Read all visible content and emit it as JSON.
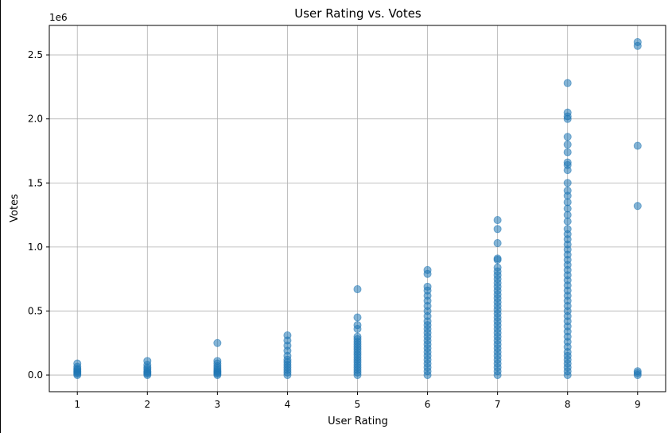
{
  "chart_data": {
    "type": "scatter",
    "title": "User Rating vs. Votes",
    "xlabel": "User Rating",
    "ylabel": "Votes",
    "y_offset_label": "1e6",
    "xlim": [
      0.6,
      9.4
    ],
    "ylim": [
      -130000,
      2730000
    ],
    "xticks": [
      1,
      2,
      3,
      4,
      5,
      6,
      7,
      8,
      9
    ],
    "xtick_labels": [
      "1",
      "2",
      "3",
      "4",
      "5",
      "6",
      "7",
      "8",
      "9"
    ],
    "yticks": [
      0,
      500000,
      1000000,
      1500000,
      2000000,
      2500000
    ],
    "ytick_labels": [
      "0.0",
      "0.5",
      "1.0",
      "1.5",
      "2.0",
      "2.5"
    ],
    "grid": true,
    "marker_color": "#1f77b4",
    "marker_alpha": 0.55,
    "series": [
      {
        "points": [
          [
            1,
            0
          ],
          [
            1,
            10000
          ],
          [
            1,
            20000
          ],
          [
            1,
            30000
          ],
          [
            1,
            40000
          ],
          [
            1,
            50000
          ],
          [
            1,
            65000
          ],
          [
            1,
            90000
          ],
          [
            2,
            0
          ],
          [
            2,
            10000
          ],
          [
            2,
            20000
          ],
          [
            2,
            30000
          ],
          [
            2,
            45000
          ],
          [
            2,
            60000
          ],
          [
            2,
            80000
          ],
          [
            2,
            110000
          ],
          [
            3,
            0
          ],
          [
            3,
            10000
          ],
          [
            3,
            20000
          ],
          [
            3,
            30000
          ],
          [
            3,
            40000
          ],
          [
            3,
            55000
          ],
          [
            3,
            70000
          ],
          [
            3,
            90000
          ],
          [
            3,
            110000
          ],
          [
            3,
            250000
          ],
          [
            4,
            0
          ],
          [
            4,
            20000
          ],
          [
            4,
            40000
          ],
          [
            4,
            60000
          ],
          [
            4,
            80000
          ],
          [
            4,
            100000
          ],
          [
            4,
            120000
          ],
          [
            4,
            150000
          ],
          [
            4,
            190000
          ],
          [
            4,
            230000
          ],
          [
            4,
            270000
          ],
          [
            4,
            310000
          ],
          [
            5,
            0
          ],
          [
            5,
            20000
          ],
          [
            5,
            40000
          ],
          [
            5,
            60000
          ],
          [
            5,
            80000
          ],
          [
            5,
            100000
          ],
          [
            5,
            120000
          ],
          [
            5,
            140000
          ],
          [
            5,
            160000
          ],
          [
            5,
            180000
          ],
          [
            5,
            200000
          ],
          [
            5,
            220000
          ],
          [
            5,
            240000
          ],
          [
            5,
            260000
          ],
          [
            5,
            280000
          ],
          [
            5,
            300000
          ],
          [
            5,
            360000
          ],
          [
            5,
            390000
          ],
          [
            5,
            450000
          ],
          [
            5,
            670000
          ],
          [
            6,
            0
          ],
          [
            6,
            30000
          ],
          [
            6,
            60000
          ],
          [
            6,
            90000
          ],
          [
            6,
            120000
          ],
          [
            6,
            150000
          ],
          [
            6,
            180000
          ],
          [
            6,
            210000
          ],
          [
            6,
            240000
          ],
          [
            6,
            270000
          ],
          [
            6,
            300000
          ],
          [
            6,
            330000
          ],
          [
            6,
            360000
          ],
          [
            6,
            390000
          ],
          [
            6,
            420000
          ],
          [
            6,
            460000
          ],
          [
            6,
            500000
          ],
          [
            6,
            540000
          ],
          [
            6,
            580000
          ],
          [
            6,
            620000
          ],
          [
            6,
            660000
          ],
          [
            6,
            690000
          ],
          [
            6,
            790000
          ],
          [
            6,
            820000
          ],
          [
            7,
            0
          ],
          [
            7,
            30000
          ],
          [
            7,
            60000
          ],
          [
            7,
            90000
          ],
          [
            7,
            120000
          ],
          [
            7,
            150000
          ],
          [
            7,
            180000
          ],
          [
            7,
            210000
          ],
          [
            7,
            240000
          ],
          [
            7,
            270000
          ],
          [
            7,
            300000
          ],
          [
            7,
            330000
          ],
          [
            7,
            360000
          ],
          [
            7,
            390000
          ],
          [
            7,
            420000
          ],
          [
            7,
            450000
          ],
          [
            7,
            480000
          ],
          [
            7,
            510000
          ],
          [
            7,
            540000
          ],
          [
            7,
            570000
          ],
          [
            7,
            600000
          ],
          [
            7,
            630000
          ],
          [
            7,
            660000
          ],
          [
            7,
            690000
          ],
          [
            7,
            720000
          ],
          [
            7,
            750000
          ],
          [
            7,
            780000
          ],
          [
            7,
            810000
          ],
          [
            7,
            840000
          ],
          [
            7,
            900000
          ],
          [
            7,
            910000
          ],
          [
            7,
            1030000
          ],
          [
            7,
            1140000
          ],
          [
            7,
            1210000
          ],
          [
            8,
            0
          ],
          [
            8,
            30000
          ],
          [
            8,
            60000
          ],
          [
            8,
            90000
          ],
          [
            8,
            120000
          ],
          [
            8,
            150000
          ],
          [
            8,
            180000
          ],
          [
            8,
            220000
          ],
          [
            8,
            260000
          ],
          [
            8,
            300000
          ],
          [
            8,
            340000
          ],
          [
            8,
            380000
          ],
          [
            8,
            420000
          ],
          [
            8,
            460000
          ],
          [
            8,
            500000
          ],
          [
            8,
            540000
          ],
          [
            8,
            580000
          ],
          [
            8,
            620000
          ],
          [
            8,
            660000
          ],
          [
            8,
            700000
          ],
          [
            8,
            740000
          ],
          [
            8,
            780000
          ],
          [
            8,
            820000
          ],
          [
            8,
            860000
          ],
          [
            8,
            900000
          ],
          [
            8,
            940000
          ],
          [
            8,
            980000
          ],
          [
            8,
            1020000
          ],
          [
            8,
            1060000
          ],
          [
            8,
            1100000
          ],
          [
            8,
            1140000
          ],
          [
            8,
            1200000
          ],
          [
            8,
            1250000
          ],
          [
            8,
            1300000
          ],
          [
            8,
            1350000
          ],
          [
            8,
            1400000
          ],
          [
            8,
            1440000
          ],
          [
            8,
            1500000
          ],
          [
            8,
            1600000
          ],
          [
            8,
            1640000
          ],
          [
            8,
            1660000
          ],
          [
            8,
            1740000
          ],
          [
            8,
            1800000
          ],
          [
            8,
            1860000
          ],
          [
            8,
            2000000
          ],
          [
            8,
            2020000
          ],
          [
            8,
            2050000
          ],
          [
            8,
            2280000
          ],
          [
            9,
            0
          ],
          [
            9,
            15000
          ],
          [
            9,
            30000
          ],
          [
            9,
            1320000
          ],
          [
            9,
            1790000
          ],
          [
            9,
            2570000
          ],
          [
            9,
            2600000
          ]
        ]
      }
    ]
  }
}
